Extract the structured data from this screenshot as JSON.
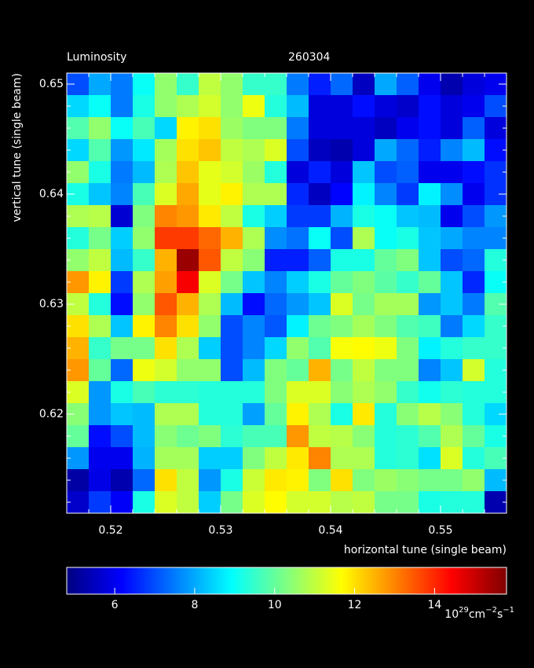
{
  "chart_data": {
    "type": "heatmap",
    "title": "Luminosity",
    "subtitle": "260304",
    "x_label": "horizontal tune (single beam)",
    "y_label": "vertical tune (single beam)",
    "colormap": "jet",
    "x": [
      0.517,
      0.519,
      0.521,
      0.523,
      0.525,
      0.527,
      0.529,
      0.531,
      0.533,
      0.535,
      0.537,
      0.539,
      0.541,
      0.543,
      0.545,
      0.547,
      0.549,
      0.551,
      0.553,
      0.555
    ],
    "y": [
      0.65,
      0.648,
      0.646,
      0.644,
      0.642,
      0.64,
      0.638,
      0.636,
      0.634,
      0.632,
      0.63,
      0.628,
      0.626,
      0.624,
      0.622,
      0.62,
      0.618,
      0.616,
      0.614,
      0.612
    ],
    "z": [
      [
        7,
        8,
        7.5,
        9,
        10.5,
        9.5,
        11,
        10.5,
        9.5,
        9.5,
        7.5,
        6.5,
        7.3,
        5.5,
        8,
        7.2,
        6,
        5.3,
        5.8,
        6
      ],
      [
        8.5,
        9,
        7.5,
        9.2,
        10.5,
        10.8,
        11.2,
        10.5,
        11.5,
        9.3,
        8.2,
        5.8,
        5.8,
        6.3,
        5.8,
        5.6,
        6.3,
        5.8,
        6,
        7
      ],
      [
        9.8,
        10.5,
        9,
        9.7,
        8.5,
        11.8,
        12,
        10.6,
        10.3,
        10.3,
        7.5,
        5.8,
        5.8,
        5.8,
        5.5,
        6,
        6.3,
        5.8,
        7.2,
        5.8
      ],
      [
        8.5,
        9.8,
        7.8,
        8.7,
        10.7,
        12,
        12.3,
        11,
        10.8,
        11.3,
        7,
        5.5,
        5.3,
        5.8,
        8,
        7.3,
        6.5,
        7.6,
        8.2,
        6.3
      ],
      [
        10.5,
        9.2,
        7.5,
        8.2,
        10.8,
        12.3,
        11.4,
        11.2,
        10.6,
        9.3,
        5.8,
        6.5,
        5.8,
        8.3,
        7,
        7.2,
        6,
        6,
        6.3,
        6.7
      ],
      [
        9.2,
        8.3,
        7.6,
        9.7,
        11.3,
        12.6,
        11.4,
        11.8,
        10.8,
        10.8,
        6.6,
        5.5,
        6.2,
        8.8,
        7.6,
        6.8,
        8.8,
        7.7,
        6,
        6.7
      ],
      [
        10.8,
        10.9,
        5.7,
        10.3,
        13,
        12.8,
        11.9,
        11,
        9.2,
        8.4,
        6.8,
        6.8,
        8.1,
        9.2,
        9,
        8.3,
        8.2,
        6,
        7,
        7.8
      ],
      [
        9.3,
        10.2,
        8.4,
        10.5,
        13.8,
        13.8,
        13.3,
        12.5,
        10.8,
        7.7,
        7.4,
        9,
        7,
        10.8,
        9,
        9.2,
        8.3,
        8,
        7.6,
        7.6
      ],
      [
        10.5,
        11,
        8.2,
        9.5,
        12.5,
        15.5,
        13.5,
        11,
        10.4,
        6.5,
        6.5,
        7.2,
        9.2,
        9.2,
        10,
        10.3,
        8.3,
        7,
        7.3,
        9.3
      ],
      [
        12.8,
        11.8,
        6.8,
        10.8,
        12.7,
        14.5,
        11.3,
        10.2,
        8.3,
        7.6,
        8.4,
        9.2,
        10,
        10.3,
        9.9,
        9.5,
        10,
        8.3,
        6.6,
        9
      ],
      [
        11,
        9.3,
        6.3,
        10.5,
        13.5,
        12.5,
        10.8,
        8.2,
        6.3,
        7.3,
        7.8,
        8.3,
        11.3,
        10.2,
        10.7,
        10.7,
        7.8,
        8.3,
        7.5,
        9.8
      ],
      [
        12,
        10.8,
        8.3,
        11.8,
        13,
        12,
        10.5,
        7,
        7.6,
        7.1,
        8.8,
        10.1,
        10.3,
        10.7,
        10.3,
        9.8,
        9.6,
        7.5,
        8.5,
        9.5
      ],
      [
        12.5,
        9.5,
        10.2,
        10.2,
        12,
        10.8,
        8.4,
        7,
        7.6,
        8.5,
        10.5,
        9.8,
        11.6,
        11.7,
        11.5,
        10.3,
        8.8,
        9.3,
        9.5,
        9.5
      ],
      [
        12.8,
        10,
        7.3,
        11.5,
        11.2,
        10.5,
        10.5,
        7,
        8.2,
        10.3,
        10,
        12.5,
        10.2,
        11,
        10.3,
        10.3,
        7.6,
        8.3,
        11.2,
        9.3
      ],
      [
        11.3,
        7.8,
        9.2,
        9.7,
        9.4,
        9.4,
        9.3,
        9.3,
        9.3,
        10.3,
        11.3,
        11.3,
        10.4,
        10.8,
        10.5,
        9.5,
        9.1,
        9.4,
        9.3,
        9.3
      ],
      [
        10.4,
        7.8,
        8.3,
        8.2,
        10.8,
        10.8,
        9.3,
        9.3,
        7.9,
        10,
        11.8,
        10.8,
        9.2,
        11.9,
        9.3,
        10.4,
        10.9,
        10.4,
        9.3,
        8.5
      ],
      [
        10,
        6.3,
        7,
        8.2,
        10.4,
        10.1,
        10.3,
        9.4,
        9.7,
        9.7,
        12.8,
        11,
        10.9,
        10.4,
        9.3,
        9.4,
        9.8,
        10.8,
        10,
        9.2
      ],
      [
        7.8,
        6,
        6,
        8.1,
        10.7,
        10.7,
        8.4,
        8.4,
        10.3,
        11,
        11.9,
        13,
        10.8,
        10.8,
        9.3,
        9.4,
        8.6,
        11.3,
        9.3,
        9.7
      ],
      [
        5.2,
        5.9,
        5.3,
        7.3,
        12,
        11,
        7.8,
        9.2,
        11.1,
        11.9,
        11.8,
        10.3,
        12,
        10.3,
        10.6,
        10.4,
        10.2,
        10.2,
        10.5,
        8.2
      ],
      [
        5.6,
        6.8,
        6.1,
        9.2,
        11.3,
        11,
        8.4,
        10.2,
        11.3,
        11.7,
        11.2,
        11.2,
        10.9,
        11,
        10.2,
        10.2,
        9.2,
        9.3,
        9.3,
        5.3
      ]
    ],
    "xlim": [
      0.516,
      0.556
    ],
    "ylim": [
      0.611,
      0.651
    ],
    "xticks": [
      0.52,
      0.53,
      0.54,
      0.55
    ],
    "yticks": [
      0.62,
      0.63,
      0.64,
      0.65
    ],
    "zlim": [
      4.8,
      15.8
    ],
    "colorbar_ticks": [
      6,
      8,
      10,
      12,
      14
    ],
    "colorbar_unit": {
      "base": "10",
      "exp": "29",
      "unit1": "cm",
      "exp1": "−2",
      "unit2": "s",
      "exp2": "−1"
    }
  }
}
